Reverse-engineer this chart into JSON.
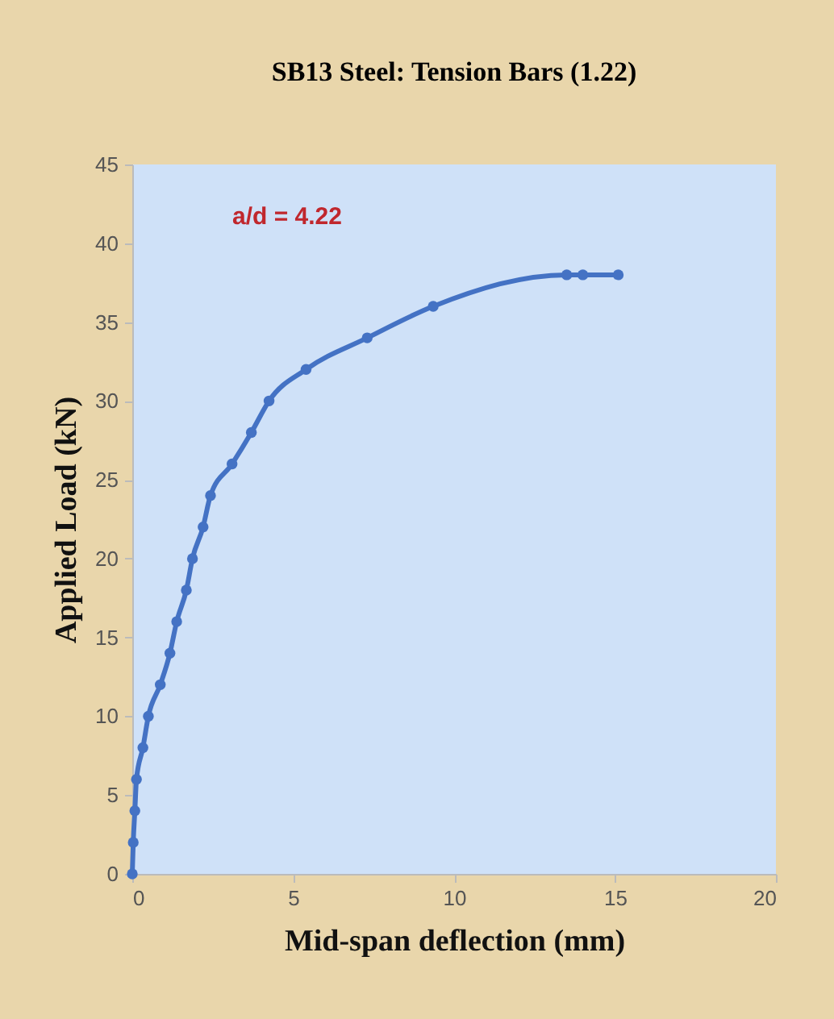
{
  "chart_data": {
    "type": "line",
    "title": "SB13 Steel: Tension Bars (1.22)",
    "xlabel": "Mid-span deflection (mm)",
    "ylabel": "Applied Load (kN)",
    "annotations": [
      "a/d = 4.22"
    ],
    "x": [
      0,
      0.03,
      0.08,
      0.13,
      0.33,
      0.5,
      0.87,
      1.17,
      1.38,
      1.68,
      1.87,
      2.2,
      2.43,
      3.1,
      3.7,
      4.25,
      5.4,
      7.3,
      9.35,
      13.5,
      14.0,
      15.1
    ],
    "series": [
      {
        "color": "#4472c4",
        "values": [
          0,
          2,
          4,
          6,
          8,
          10,
          12,
          14,
          16,
          18,
          20,
          22,
          24,
          26,
          28,
          30,
          32,
          34,
          36,
          38,
          38,
          38
        ]
      }
    ],
    "xlim": [
      0,
      20
    ],
    "xticks": [
      0,
      5,
      10,
      15,
      20
    ],
    "ylim": [
      0,
      45
    ],
    "yticks": [
      0,
      5,
      10,
      15,
      20,
      25,
      30,
      35,
      40,
      45
    ],
    "marker": "circle",
    "line_style": "solid",
    "grid": false,
    "legend": false
  }
}
